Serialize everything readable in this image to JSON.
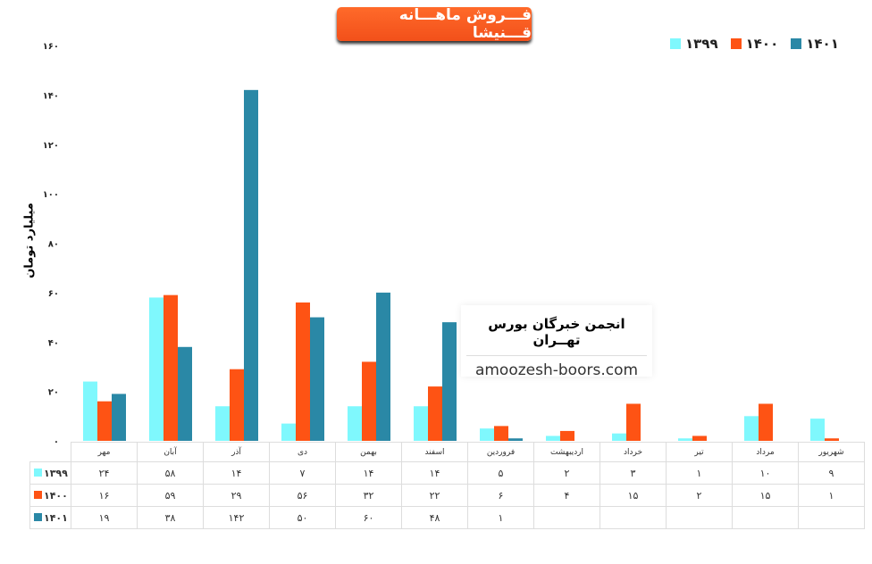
{
  "chart_data": {
    "type": "bar",
    "title": "فـــروش ماهـــانه قـــنیشا",
    "ylabel": "میلیارد تومان",
    "ylim": [
      0,
      160
    ],
    "yticks": [
      0,
      20,
      40,
      60,
      80,
      100,
      120,
      140,
      160
    ],
    "ytick_labels": [
      "۰",
      "۲۰",
      "۴۰",
      "۶۰",
      "۸۰",
      "۱۰۰",
      "۱۲۰",
      "۱۴۰",
      "۱۶۰"
    ],
    "grid": false,
    "legend_placement": "top-right",
    "categories": [
      "مهر",
      "آبان",
      "آذر",
      "دی",
      "بهمن",
      "اسفند",
      "فروردین",
      "اردیبهشت",
      "خرداد",
      "تیر",
      "مرداد",
      "شهریور"
    ],
    "series": [
      {
        "name": "۱۳۹۹",
        "color": "#7ff8fd",
        "values": [
          24,
          58,
          14,
          7,
          14,
          14,
          5,
          2,
          3,
          1,
          10,
          9
        ],
        "labels": [
          "۲۴",
          "۵۸",
          "۱۴",
          "۷",
          "۱۴",
          "۱۴",
          "۵",
          "۲",
          "۳",
          "۱",
          "۱۰",
          "۹"
        ]
      },
      {
        "name": "۱۴۰۰",
        "color": "#fe5314",
        "values": [
          16,
          59,
          29,
          56,
          32,
          22,
          6,
          4,
          15,
          2,
          15,
          1
        ],
        "labels": [
          "۱۶",
          "۵۹",
          "۲۹",
          "۵۶",
          "۳۲",
          "۲۲",
          "۶",
          "۴",
          "۱۵",
          "۲",
          "۱۵",
          "۱"
        ]
      },
      {
        "name": "۱۴۰۱",
        "color": "#2a88a6",
        "values": [
          19,
          38,
          142,
          50,
          60,
          48,
          1,
          null,
          null,
          null,
          null,
          null
        ],
        "labels": [
          "۱۹",
          "۳۸",
          "۱۴۲",
          "۵۰",
          "۶۰",
          "۴۸",
          "۱",
          "",
          "",
          "",
          "",
          ""
        ]
      }
    ]
  },
  "watermark": {
    "name": "انجمن خبرگان بورس تهــران",
    "url": "amoozesh-boors.com"
  }
}
